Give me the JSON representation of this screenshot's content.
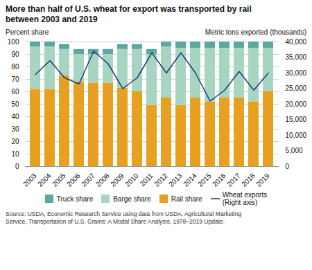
{
  "chart_data": {
    "type": "bar",
    "title": "More than half of U.S. wheat for export was transported by rail",
    "subtitle": "between 2003 and 2019",
    "ylabel": "Percent share",
    "y2label": "Metric tons exported (thousands)",
    "caption": "Source: USDA, Economic Research Service using data from USDA, Agricultural Marketing\nService, Transportation of U.S. Grains: A Modal Share Analysis, 1978–2019 Update.",
    "categories": [
      "2003",
      "2004",
      "2005",
      "2006",
      "2007",
      "2008",
      "2009",
      "2010",
      "2011",
      "2012",
      "2013",
      "2014",
      "2015",
      "2016",
      "2017",
      "2018",
      "2019"
    ],
    "series": [
      {
        "name": "Truck share",
        "type": "bar",
        "color": "#5ba8a0",
        "values": [
          4,
          4,
          4,
          4,
          4,
          4,
          4,
          4,
          4,
          4,
          5,
          5,
          5,
          5,
          5,
          5,
          5
        ]
      },
      {
        "name": "Barge share",
        "type": "bar",
        "color": "#a8d5c2",
        "values": [
          34,
          34,
          21,
          22,
          23,
          23,
          31,
          34,
          41,
          41,
          46,
          40,
          43,
          40,
          40,
          43,
          35
        ]
      },
      {
        "name": "Rail share",
        "type": "bar",
        "color": "#e8a020",
        "values": [
          62,
          62,
          73,
          68,
          67,
          67,
          63,
          60,
          49,
          55,
          49,
          55,
          52,
          55,
          55,
          52,
          60
        ]
      },
      {
        "name": "Wheat exports\n(Right axis)",
        "type": "line",
        "axis": "y2",
        "color": "#1a3a7a",
        "values": [
          29500,
          34000,
          28500,
          26500,
          37000,
          33000,
          25000,
          28500,
          36500,
          30000,
          36500,
          30000,
          21000,
          24500,
          30500,
          24500,
          30000
        ]
      }
    ],
    "stacked": true,
    "ylim": [
      0,
      100
    ],
    "yticks": [
      0,
      10,
      20,
      30,
      40,
      50,
      60,
      70,
      80,
      90,
      100
    ],
    "y2lim": [
      0,
      40000
    ],
    "y2ticks": [
      0,
      {
        "value": 5000,
        "label": "5,000"
      },
      {
        "value": 10000,
        "label": "10,000"
      },
      {
        "value": 15000,
        "label": "15,000"
      },
      {
        "value": 20000,
        "label": "20,000"
      },
      {
        "value": 25000,
        "label": "25,000"
      },
      {
        "value": 30000,
        "label": "30,000"
      },
      {
        "value": 35000,
        "label": "35,000"
      },
      {
        "value": 40000,
        "label": "40,000"
      }
    ],
    "grid": true,
    "legend": "bottom"
  }
}
